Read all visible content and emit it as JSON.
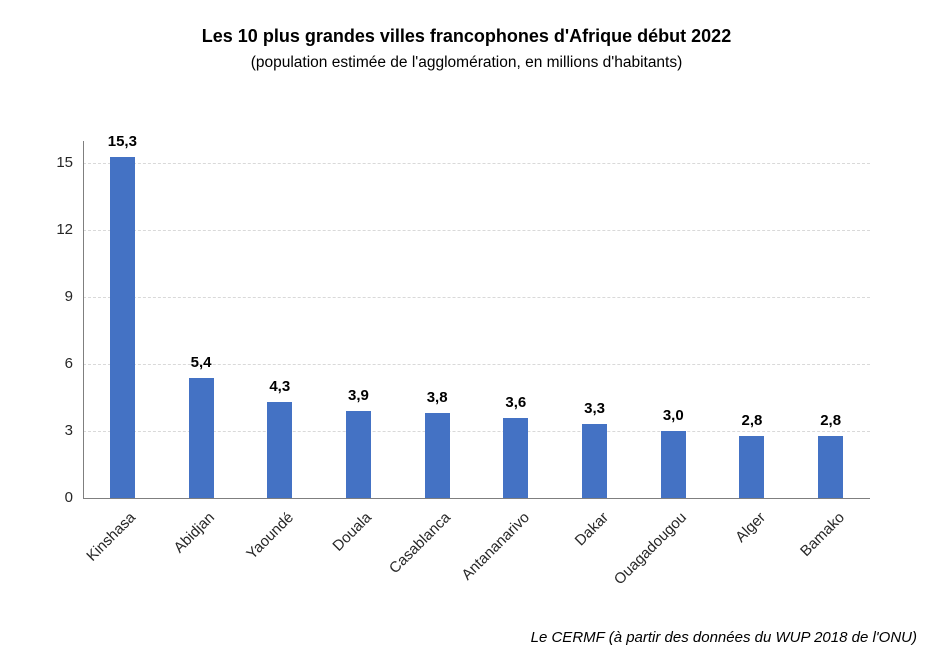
{
  "page": {
    "background": "#ffffff"
  },
  "chart_data": {
    "type": "bar",
    "title": "Les 10 plus grandes villes francophones d'Afrique début 2022",
    "subtitle": "(population estimée de l'agglomération, en millions d'habitants)",
    "source": "Le CERMF (à partir des données du WUP 2018 de l'ONU)",
    "categories": [
      "Kinshasa",
      "Abidjan",
      "Yaoundé",
      "Douala",
      "Casablanca",
      "Antananarivo",
      "Dakar",
      "Ouagadougou",
      "Alger",
      "Bamako"
    ],
    "values": [
      15.3,
      5.4,
      4.3,
      3.9,
      3.8,
      3.6,
      3.3,
      3.0,
      2.8,
      2.8
    ],
    "value_labels": [
      "15,3",
      "5,4",
      "4,3",
      "3,9",
      "3,8",
      "3,6",
      "3,3",
      "3,0",
      "2,8",
      "2,8"
    ],
    "xlabel": "",
    "ylabel": "",
    "yticks": [
      0,
      3,
      6,
      9,
      12,
      15
    ],
    "ylim": [
      0,
      16
    ],
    "grid": "horizontal-dashed",
    "legend_position": "none",
    "bar_color": "#4472C4",
    "gridline_color": "#d9d9d9",
    "axis_color": "#7f7f7f",
    "tick_label_color": "#262626"
  }
}
